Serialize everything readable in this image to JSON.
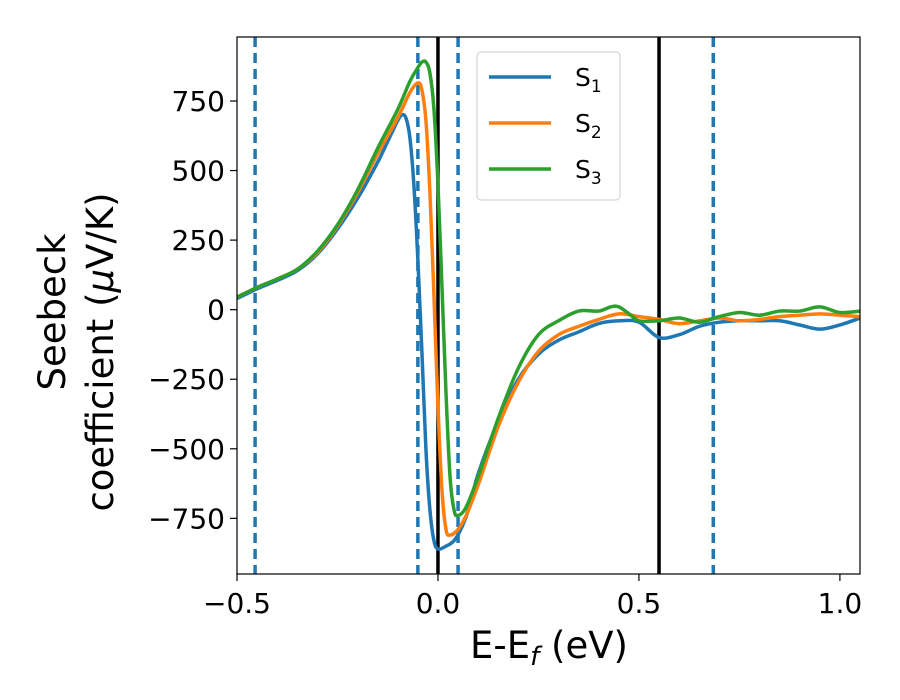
{
  "chart_data": {
    "type": "line",
    "xlabel": {
      "main": "E-E",
      "sub": "f",
      "tail": " (eV)"
    },
    "ylabel": {
      "line1": "Seebeck",
      "line2_pre": "coefficient  (",
      "mu": "μ",
      "line2_post": "V/K)"
    },
    "xlim": [
      -0.5,
      1.05
    ],
    "ylim": [
      -950,
      980
    ],
    "xticks": [
      -0.5,
      0.0,
      0.5,
      1.0
    ],
    "xtick_labels": [
      "−0.5",
      "0.0",
      "0.5",
      "1.0"
    ],
    "yticks": [
      750,
      500,
      250,
      0,
      -250,
      -500,
      -750
    ],
    "ytick_labels": [
      "750",
      "500",
      "250",
      "0",
      "−250",
      "−500",
      "−750"
    ],
    "grid": false,
    "legend": {
      "placement": "top-center"
    },
    "vlines_dashed": [
      -0.455,
      -0.05,
      0.05,
      0.685
    ],
    "vlines_dashed_color": "#1f77b4",
    "vlines_solid": [
      0.0,
      0.55
    ],
    "vlines_solid_color": "#000000",
    "series": [
      {
        "name": "S",
        "sub": "1",
        "color": "#1f77b4",
        "points": [
          [
            -0.5,
            40
          ],
          [
            -0.45,
            75
          ],
          [
            -0.4,
            105
          ],
          [
            -0.35,
            140
          ],
          [
            -0.3,
            200
          ],
          [
            -0.25,
            290
          ],
          [
            -0.2,
            400
          ],
          [
            -0.15,
            530
          ],
          [
            -0.12,
            620
          ],
          [
            -0.1,
            680
          ],
          [
            -0.09,
            700
          ],
          [
            -0.08,
            690
          ],
          [
            -0.07,
            620
          ],
          [
            -0.06,
            450
          ],
          [
            -0.05,
            180
          ],
          [
            -0.04,
            -150
          ],
          [
            -0.03,
            -500
          ],
          [
            -0.02,
            -720
          ],
          [
            -0.01,
            -830
          ],
          [
            0.0,
            -860
          ],
          [
            0.02,
            -850
          ],
          [
            0.04,
            -830
          ],
          [
            0.06,
            -780
          ],
          [
            0.08,
            -700
          ],
          [
            0.1,
            -590
          ],
          [
            0.15,
            -400
          ],
          [
            0.2,
            -250
          ],
          [
            0.25,
            -160
          ],
          [
            0.3,
            -110
          ],
          [
            0.35,
            -80
          ],
          [
            0.4,
            -50
          ],
          [
            0.45,
            -40
          ],
          [
            0.5,
            -45
          ],
          [
            0.55,
            -100
          ],
          [
            0.6,
            -90
          ],
          [
            0.65,
            -60
          ],
          [
            0.7,
            -45
          ],
          [
            0.75,
            -40
          ],
          [
            0.8,
            -40
          ],
          [
            0.85,
            -40
          ],
          [
            0.9,
            -55
          ],
          [
            0.95,
            -70
          ],
          [
            1.0,
            -55
          ],
          [
            1.05,
            -30
          ]
        ]
      },
      {
        "name": "S",
        "sub": "2",
        "color": "#ff7f0e",
        "points": [
          [
            -0.5,
            45
          ],
          [
            -0.45,
            80
          ],
          [
            -0.4,
            110
          ],
          [
            -0.35,
            145
          ],
          [
            -0.3,
            205
          ],
          [
            -0.25,
            300
          ],
          [
            -0.2,
            420
          ],
          [
            -0.15,
            560
          ],
          [
            -0.1,
            690
          ],
          [
            -0.07,
            780
          ],
          [
            -0.05,
            815
          ],
          [
            -0.04,
            790
          ],
          [
            -0.03,
            680
          ],
          [
            -0.02,
            420
          ],
          [
            -0.01,
            50
          ],
          [
            0.0,
            -350
          ],
          [
            0.01,
            -650
          ],
          [
            0.02,
            -790
          ],
          [
            0.03,
            -810
          ],
          [
            0.05,
            -790
          ],
          [
            0.07,
            -740
          ],
          [
            0.1,
            -630
          ],
          [
            0.15,
            -420
          ],
          [
            0.2,
            -260
          ],
          [
            0.25,
            -150
          ],
          [
            0.3,
            -90
          ],
          [
            0.35,
            -60
          ],
          [
            0.4,
            -35
          ],
          [
            0.45,
            -15
          ],
          [
            0.5,
            -25
          ],
          [
            0.55,
            -35
          ],
          [
            0.6,
            -50
          ],
          [
            0.65,
            -40
          ],
          [
            0.7,
            -30
          ],
          [
            0.75,
            -40
          ],
          [
            0.8,
            -35
          ],
          [
            0.85,
            -25
          ],
          [
            0.9,
            -20
          ],
          [
            0.95,
            -15
          ],
          [
            1.0,
            -20
          ],
          [
            1.05,
            -25
          ]
        ]
      },
      {
        "name": "S",
        "sub": "3",
        "color": "#2ca02c",
        "points": [
          [
            -0.5,
            45
          ],
          [
            -0.45,
            80
          ],
          [
            -0.4,
            110
          ],
          [
            -0.35,
            145
          ],
          [
            -0.3,
            210
          ],
          [
            -0.25,
            305
          ],
          [
            -0.2,
            430
          ],
          [
            -0.15,
            580
          ],
          [
            -0.1,
            720
          ],
          [
            -0.07,
            820
          ],
          [
            -0.05,
            870
          ],
          [
            -0.04,
            890
          ],
          [
            -0.03,
            890
          ],
          [
            -0.02,
            850
          ],
          [
            -0.01,
            720
          ],
          [
            0.0,
            450
          ],
          [
            0.01,
            80
          ],
          [
            0.02,
            -300
          ],
          [
            0.03,
            -600
          ],
          [
            0.04,
            -720
          ],
          [
            0.05,
            -740
          ],
          [
            0.07,
            -710
          ],
          [
            0.1,
            -600
          ],
          [
            0.15,
            -390
          ],
          [
            0.2,
            -210
          ],
          [
            0.25,
            -90
          ],
          [
            0.3,
            -40
          ],
          [
            0.35,
            -5
          ],
          [
            0.4,
            -5
          ],
          [
            0.43,
            10
          ],
          [
            0.45,
            10
          ],
          [
            0.48,
            -20
          ],
          [
            0.5,
            -40
          ],
          [
            0.55,
            -40
          ],
          [
            0.6,
            -30
          ],
          [
            0.65,
            -45
          ],
          [
            0.7,
            -25
          ],
          [
            0.75,
            -10
          ],
          [
            0.8,
            -20
          ],
          [
            0.85,
            -5
          ],
          [
            0.9,
            -5
          ],
          [
            0.95,
            10
          ],
          [
            1.0,
            -10
          ],
          [
            1.05,
            -5
          ]
        ]
      }
    ]
  }
}
